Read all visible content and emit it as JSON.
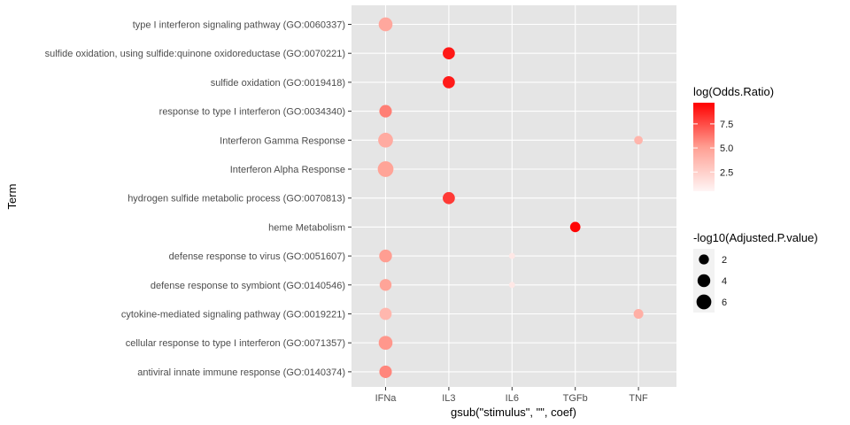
{
  "chart_data": {
    "type": "scatter",
    "x_categories": [
      "IFNa",
      "IL3",
      "IL6",
      "TGFb",
      "TNF"
    ],
    "y_categories": [
      "type I interferon signaling pathway (GO:0060337)",
      "sulfide oxidation, using sulfide:quinone oxidoreductase (GO:0070221)",
      "sulfide oxidation (GO:0019418)",
      "response to type I interferon (GO:0034340)",
      "Interferon Gamma Response",
      "Interferon Alpha Response",
      "hydrogen sulfide metabolic process (GO:0070813)",
      "heme Metabolism",
      "defense response to virus (GO:0051607)",
      "defense response to symbiont (GO:0140546)",
      "cytokine-mediated signaling pathway (GO:0019221)",
      "cellular response to type I interferon (GO:0071357)",
      "antiviral innate immune response (GO:0140374)"
    ],
    "points": [
      {
        "x": "IFNa",
        "y": "type I interferon signaling pathway (GO:0060337)",
        "log_or": 4.6,
        "neglog10p": 5.0
      },
      {
        "x": "IL3",
        "y": "sulfide oxidation, using sulfide:quinone oxidoreductase (GO:0070221)",
        "log_or": 9.0,
        "neglog10p": 3.5
      },
      {
        "x": "IL3",
        "y": "sulfide oxidation (GO:0019418)",
        "log_or": 8.9,
        "neglog10p": 3.5
      },
      {
        "x": "IFNa",
        "y": "response to type I interferon (GO:0034340)",
        "log_or": 6.0,
        "neglog10p": 3.8
      },
      {
        "x": "IFNa",
        "y": "Interferon Gamma Response",
        "log_or": 4.4,
        "neglog10p": 6.0
      },
      {
        "x": "TNF",
        "y": "Interferon Gamma Response",
        "log_or": 3.9,
        "neglog10p": 1.2
      },
      {
        "x": "IFNa",
        "y": "Interferon Alpha Response",
        "log_or": 4.8,
        "neglog10p": 7.0
      },
      {
        "x": "IL3",
        "y": "hydrogen sulfide metabolic process (GO:0070813)",
        "log_or": 8.0,
        "neglog10p": 3.5
      },
      {
        "x": "TGFb",
        "y": "heme Metabolism",
        "log_or": 9.6,
        "neglog10p": 2.2
      },
      {
        "x": "IFNa",
        "y": "defense response to virus (GO:0051607)",
        "log_or": 5.1,
        "neglog10p": 4.0
      },
      {
        "x": "IL6",
        "y": "defense response to virus (GO:0051607)",
        "log_or": 1.2,
        "neglog10p": 0.3
      },
      {
        "x": "IFNa",
        "y": "defense response to symbiont (GO:0140546)",
        "log_or": 4.8,
        "neglog10p": 3.3
      },
      {
        "x": "IL6",
        "y": "defense response to symbiont (GO:0140546)",
        "log_or": 1.2,
        "neglog10p": 0.3
      },
      {
        "x": "IFNa",
        "y": "cytokine-mediated signaling pathway (GO:0019221)",
        "log_or": 3.8,
        "neglog10p": 3.5
      },
      {
        "x": "TNF",
        "y": "cytokine-mediated signaling pathway (GO:0019221)",
        "log_or": 4.2,
        "neglog10p": 1.8
      },
      {
        "x": "IFNa",
        "y": "cellular response to type I interferon (GO:0071357)",
        "log_or": 5.3,
        "neglog10p": 5.0
      },
      {
        "x": "IFNa",
        "y": "antiviral innate immune response (GO:0140374)",
        "log_or": 5.8,
        "neglog10p": 3.8
      }
    ],
    "xlabel": "gsub(\"stimulus\", \"\", coef)",
    "ylabel": "Term",
    "color_legend": {
      "title": "log(Odds.Ratio)",
      "ticks": [
        2.5,
        5.0,
        7.5
      ],
      "tick_labels": [
        "2.5",
        "5.0",
        "7.5"
      ],
      "range": [
        0.5,
        9.7
      ],
      "low_color": "#fff5f5",
      "high_color": "#ff0000"
    },
    "size_legend": {
      "title": "-log10(Adjusted.P.value)",
      "values": [
        2,
        4,
        6
      ],
      "labels": [
        "2",
        "4",
        "6"
      ]
    },
    "grid": true,
    "legend_position": "right",
    "panel_background": "#e5e5e5"
  }
}
